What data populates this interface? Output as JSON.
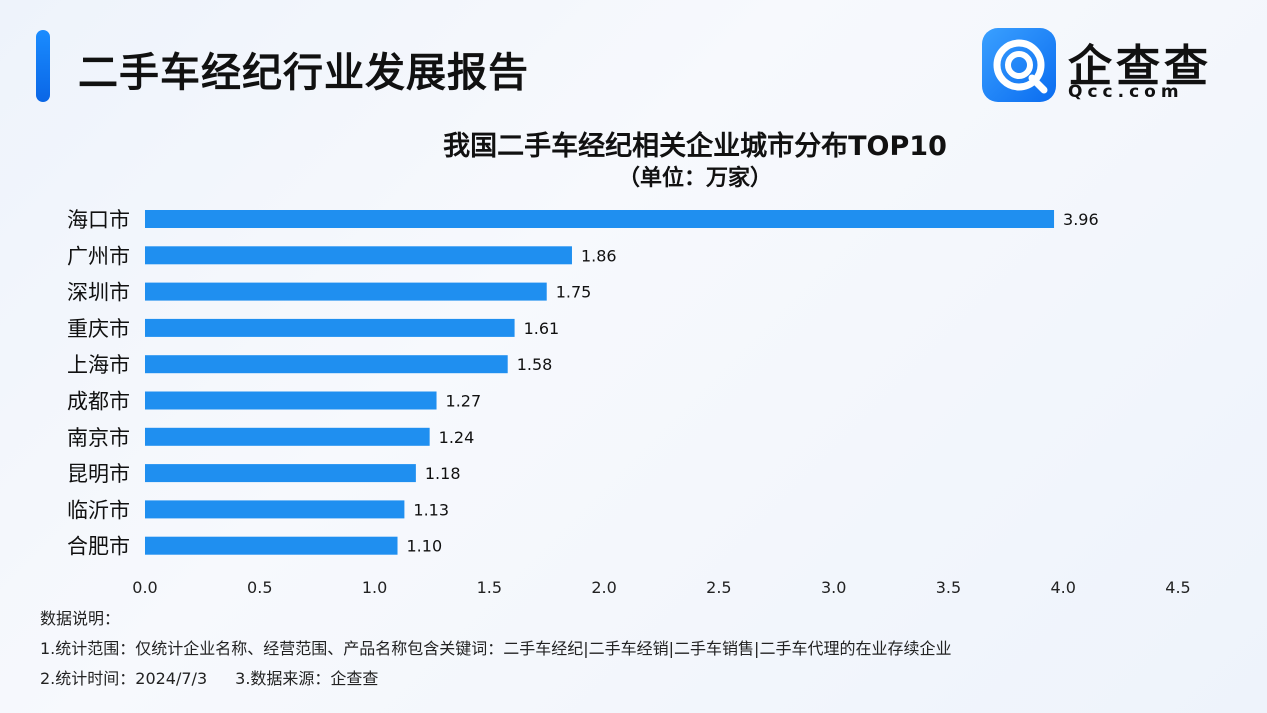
{
  "header": {
    "title": "二手车经纪行业发展报告"
  },
  "logo": {
    "name": "企查查",
    "domain": "Qcc.com"
  },
  "colors": {
    "bar": "#1f8ff0",
    "accent": "#1a8cff"
  },
  "chart_data": {
    "type": "bar",
    "orientation": "horizontal",
    "title": "我国二手车经纪相关企业城市分布TOP10",
    "subtitle": "（单位：万家）",
    "categories": [
      "海口市",
      "广州市",
      "深圳市",
      "重庆市",
      "上海市",
      "成都市",
      "南京市",
      "昆明市",
      "临沂市",
      "合肥市"
    ],
    "values": [
      3.96,
      1.86,
      1.75,
      1.61,
      1.58,
      1.27,
      1.24,
      1.18,
      1.13,
      1.1
    ],
    "value_labels": [
      "3.96",
      "1.86",
      "1.75",
      "1.61",
      "1.58",
      "1.27",
      "1.24",
      "1.18",
      "1.13",
      "1.10"
    ],
    "xlim": [
      0,
      4.5
    ],
    "xticks": [
      "0.0",
      "0.5",
      "1.0",
      "1.5",
      "2.0",
      "2.5",
      "3.0",
      "3.5",
      "4.0",
      "4.5"
    ],
    "grid": false,
    "legend": "none"
  },
  "notes": {
    "heading": "数据说明：",
    "line1": "1.统计范围：仅统计企业名称、经营范围、产品名称包含关键词：二手车经纪|二手车经销|二手车销售|二手车代理的在业存续企业",
    "line2a": "2.统计时间：2024/7/3",
    "line2b": "3.数据来源：企查查"
  }
}
